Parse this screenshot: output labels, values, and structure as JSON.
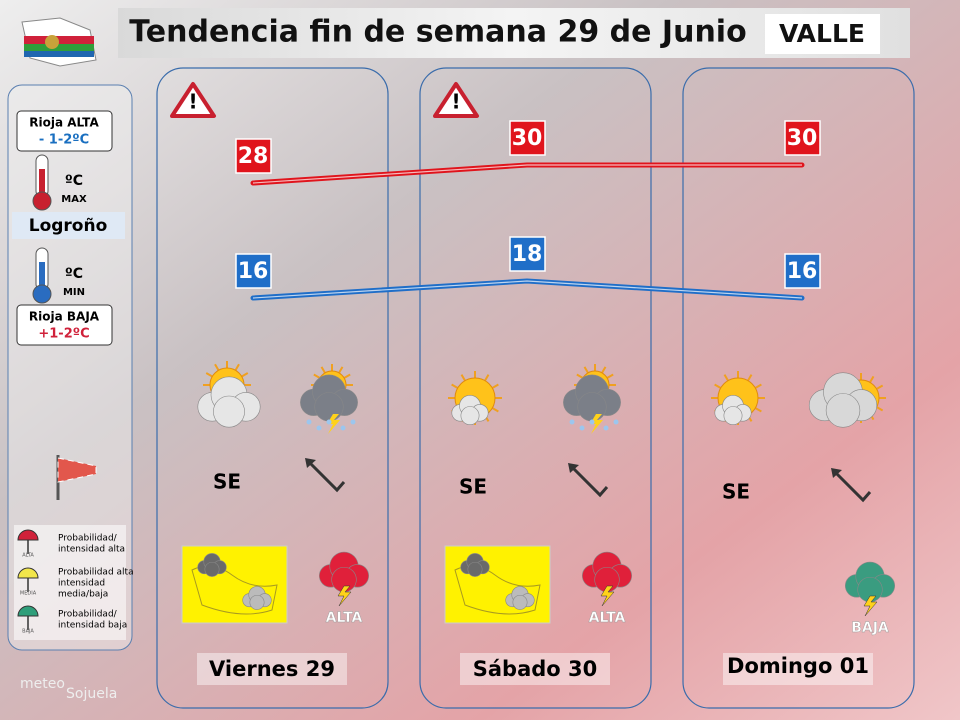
{
  "header": {
    "title": "Tendencia fin de semana 29 de Junio",
    "zone": "VALLE"
  },
  "sidebar": {
    "rioja_alta": {
      "label": "Rioja ALTA",
      "value": "- 1-2ºC"
    },
    "max_unit": "ºC",
    "max_label": "MAX",
    "city": "Logroño",
    "min_unit": "ºC",
    "min_label": "MIN",
    "rioja_baja": {
      "label": "Rioja BAJA",
      "value": "+1-2ºC"
    },
    "legend": [
      {
        "icon": "ALTA",
        "lines": [
          "Probabilidad/",
          "intensidad alta"
        ],
        "color": "#d0213a"
      },
      {
        "icon": "MEDIA",
        "lines": [
          "Probabilidad alta",
          "intensidad",
          "media/baja"
        ],
        "color": "#f2e64a"
      },
      {
        "icon": "BAJA",
        "lines": [
          "Probabilidad/",
          "intensidad baja"
        ],
        "color": "#2f9e7a"
      }
    ]
  },
  "days": [
    {
      "name": "Viernes 29",
      "max": 28,
      "min": 16,
      "wind": "SE",
      "storm": "ALTA",
      "warning": true,
      "map": true
    },
    {
      "name": "Sábado 30",
      "max": 30,
      "min": 18,
      "wind": "SE",
      "storm": "ALTA",
      "warning": true,
      "map": true
    },
    {
      "name": "Domingo 01",
      "max": 30,
      "min": 16,
      "wind": "SE",
      "storm": "BAJA",
      "warning": false,
      "map": false
    }
  ],
  "logo": {
    "first": "meteo",
    "second": "Sojuela"
  }
}
